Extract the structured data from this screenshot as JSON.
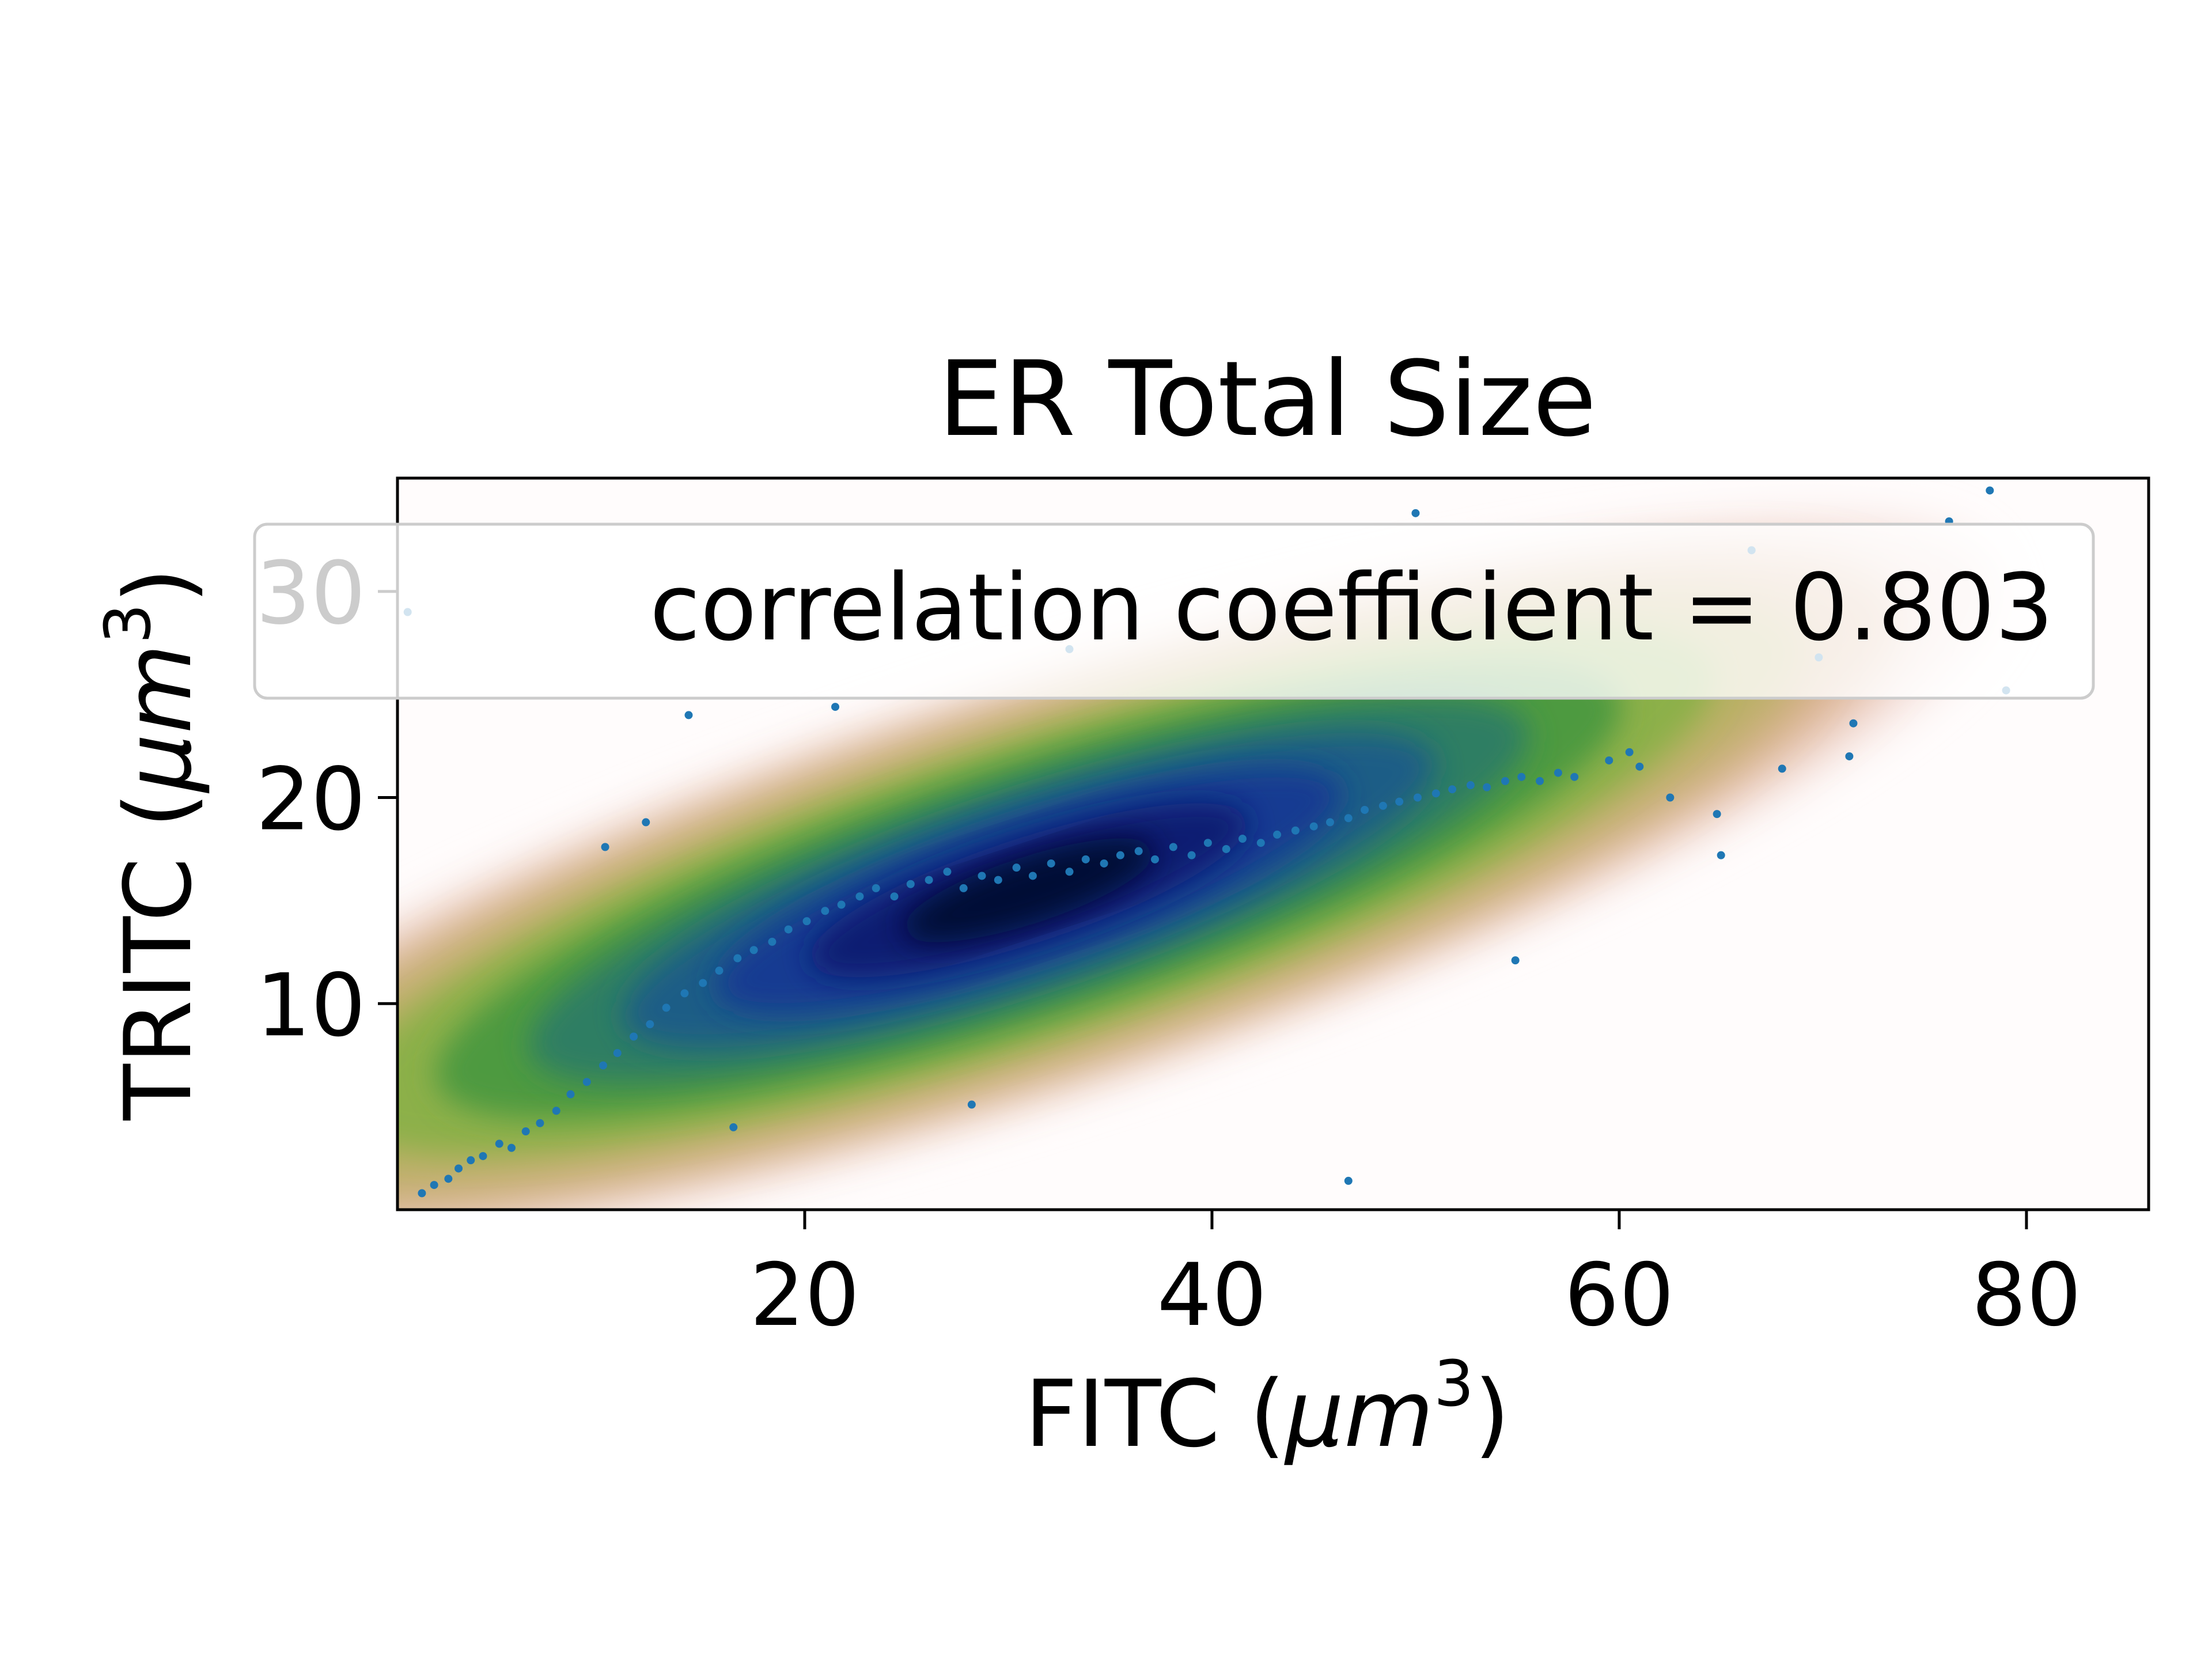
{
  "chart_data": {
    "type": "scatter",
    "title": "ER Total Size",
    "xlabel": "FITC (",
    "xlabel_unit": "μm",
    "xlabel_exp": "3",
    "ylabel": "TRITC (",
    "ylabel_unit": "μm",
    "ylabel_exp": "3",
    "xlim": [
      0,
      86
    ],
    "ylim": [
      0,
      35.5
    ],
    "xticks": [
      20,
      40,
      60,
      80
    ],
    "yticks": [
      10,
      20,
      30
    ],
    "grid": false,
    "legend": {
      "placement": "upper-right",
      "label": "correlation coefficient = 0.803"
    },
    "density_colormap": [
      "#fffcfc",
      "#f3dcd6",
      "#d9b08f",
      "#b8b063",
      "#8cb04a",
      "#4e9a3f",
      "#2e7e64",
      "#1f5d86",
      "#153a92",
      "#0b1c72",
      "#050b35"
    ],
    "point_color": "#1f77b4",
    "series": [
      {
        "x": [
          1.2,
          1.8,
          2.5,
          3.0,
          3.6,
          4.2,
          5.0,
          5.6,
          6.3,
          7.0,
          7.8,
          8.5,
          9.3,
          10.1,
          10.8,
          11.6,
          12.4,
          13.2,
          14.1,
          15.0,
          15.8,
          16.7,
          17.5,
          18.4,
          19.2,
          20.1,
          21.0,
          21.8,
          22.7,
          23.5,
          24.4,
          25.2,
          26.1,
          27.0,
          27.8,
          28.7,
          29.5,
          30.4,
          31.2,
          32.1,
          33.0,
          33.8,
          34.7,
          35.5,
          36.4,
          37.2,
          38.1,
          39.0,
          39.8,
          40.7,
          41.5,
          42.4,
          43.2,
          44.1,
          45.0,
          45.8,
          46.7,
          47.5,
          48.4,
          49.2,
          50.1,
          51.0,
          51.8,
          52.7,
          53.5,
          54.4,
          55.2,
          56.1,
          57.0,
          57.8,
          59.5,
          60.5,
          61.0,
          62.5,
          64.8,
          65.0,
          68.0,
          71.5,
          71.3,
          78.2,
          76.2,
          79.0,
          69.8,
          66.5,
          46.7,
          54.9,
          14.3,
          21.5,
          10.2,
          12.2,
          16.5,
          28.2,
          33.0,
          50.0,
          0.5
        ],
        "y": [
          0.8,
          1.2,
          1.5,
          2.0,
          2.4,
          2.6,
          3.2,
          3.0,
          3.8,
          4.2,
          4.8,
          5.6,
          6.2,
          7.0,
          7.6,
          8.4,
          9.0,
          9.8,
          10.5,
          11.0,
          11.6,
          12.2,
          12.6,
          13.0,
          13.6,
          14.0,
          14.5,
          14.8,
          15.2,
          15.6,
          15.2,
          15.8,
          16.0,
          16.4,
          15.6,
          16.2,
          16.0,
          16.6,
          16.2,
          16.8,
          16.4,
          17.0,
          16.8,
          17.2,
          17.4,
          17.0,
          17.6,
          17.2,
          17.8,
          17.5,
          18.0,
          17.8,
          18.2,
          18.4,
          18.6,
          18.8,
          19.0,
          19.4,
          19.6,
          19.8,
          20.0,
          20.2,
          20.4,
          20.6,
          20.5,
          20.8,
          21.0,
          20.8,
          21.2,
          21.0,
          21.8,
          22.2,
          21.5,
          20.0,
          19.2,
          17.2,
          21.4,
          23.6,
          22.0,
          34.9,
          33.4,
          25.2,
          26.8,
          32.0,
          1.4,
          12.1,
          24.0,
          24.4,
          17.6,
          18.8,
          4.0,
          5.1,
          27.2,
          33.8,
          29.0
        ]
      }
    ]
  }
}
